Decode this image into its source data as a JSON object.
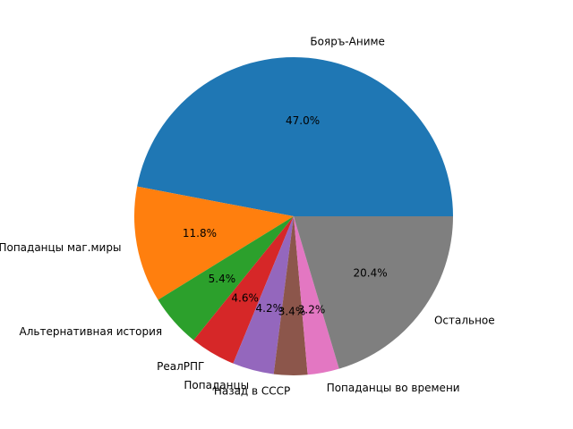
{
  "chart_data": {
    "type": "pie",
    "categories": [
      "Бояръ-Аниме",
      "Попаданцы маг.миры",
      "Альтернативная история",
      "РеалРПГ",
      "Попаданцы",
      "Назад в СССР",
      "Попаданцы во времени",
      "Остальное"
    ],
    "values": [
      47.0,
      11.8,
      5.4,
      4.6,
      4.2,
      3.4,
      3.2,
      20.4
    ],
    "value_labels": [
      "47.0%",
      "11.8%",
      "5.4%",
      "4.6%",
      "4.2%",
      "3.4%",
      "3.2%",
      "20.4%"
    ],
    "colors": [
      "#1f77b4",
      "#ff7f0e",
      "#2ca02c",
      "#d62728",
      "#9467bd",
      "#8c564b",
      "#e377c2",
      "#7f7f7f"
    ]
  }
}
